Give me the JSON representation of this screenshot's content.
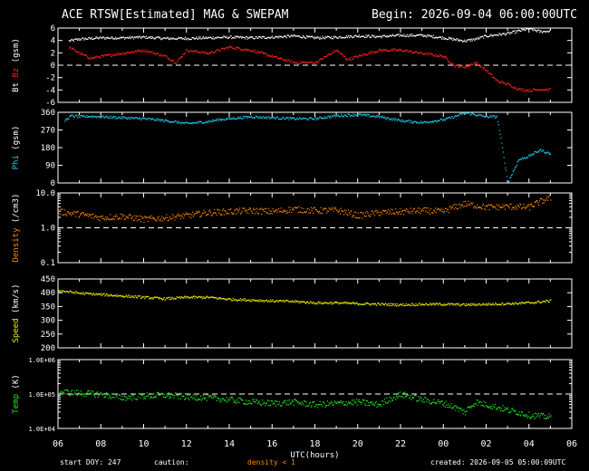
{
  "header": {
    "title": "ACE RTSW[Estimated] MAG & SWEPAM",
    "begin": "Begin: 2026-09-04 06:00:00UTC"
  },
  "footer": {
    "start_doy": "start DOY: 247",
    "caution": "caution:",
    "density_note": "density < 1",
    "created": "created: 2026-09-05 05:00:09UTC"
  },
  "colors": {
    "bt": "#ffffff",
    "bz": "#ff2020",
    "phi": "#22ccee",
    "density": "#ff8800",
    "speed": "#eeee00",
    "temp": "#22ee22",
    "frame": "#ffffff"
  },
  "chart_data": [
    {
      "type": "scatter",
      "ylabel": [
        "Bt",
        "Bz",
        "(gsm)"
      ],
      "ylim": [
        -6,
        6
      ],
      "yticks": [
        6,
        4,
        2,
        0,
        -2,
        -4,
        -6
      ],
      "reference_line": 0,
      "series": [
        {
          "name": "Bt",
          "x": [
            0.5,
            1,
            1.5,
            2,
            3,
            4,
            5,
            6,
            7,
            8,
            9,
            10,
            11,
            12,
            13,
            14,
            15,
            16,
            17,
            18,
            19,
            19.5,
            20,
            21,
            21.5,
            22,
            22.5,
            23
          ],
          "y": [
            4,
            4.3,
            4.4,
            4.5,
            4.5,
            4.6,
            4.4,
            4.4,
            4.5,
            4.6,
            4.5,
            4.6,
            4.8,
            4.5,
            4.6,
            4.8,
            4.7,
            4.9,
            4.9,
            4.5,
            4.0,
            4.3,
            4.8,
            5.2,
            5.6,
            6.0,
            5.5,
            5.6
          ]
        },
        {
          "name": "Bz",
          "x": [
            0.5,
            1,
            1.5,
            2,
            3,
            4,
            5,
            5.5,
            6,
            7,
            8,
            9,
            10,
            11,
            12,
            13,
            13.5,
            14,
            15,
            16,
            17,
            18,
            18.5,
            19,
            19.5,
            20,
            20.5,
            21,
            21.5,
            22,
            22.5,
            23
          ],
          "y": [
            3,
            2,
            1.2,
            1.5,
            2,
            2.5,
            1.5,
            0.5,
            2.5,
            2,
            3,
            2.5,
            1.5,
            0.5,
            0.5,
            2.5,
            1,
            1.5,
            2.5,
            2.5,
            2,
            1.5,
            0,
            -0.2,
            0.5,
            -0.8,
            -2.5,
            -3.0,
            -3.8,
            -4.0,
            -3.8,
            -3.9
          ]
        }
      ]
    },
    {
      "type": "scatter",
      "ylabel": [
        "Phi",
        "(gsm)"
      ],
      "ylim": [
        0,
        360
      ],
      "yticks": [
        360,
        270,
        180,
        90,
        0
      ],
      "series": [
        {
          "name": "Phi",
          "x": [
            0.3,
            0.6,
            1,
            1.5,
            2,
            3,
            4,
            5,
            6,
            7,
            7.5,
            8,
            9,
            10,
            11,
            12,
            13,
            14,
            15,
            16,
            17,
            18,
            18.5,
            19,
            19.5,
            20,
            20.5,
            21,
            21.5,
            22,
            22.5,
            23
          ],
          "y": [
            320,
            345,
            340,
            342,
            340,
            335,
            330,
            320,
            305,
            315,
            325,
            330,
            340,
            335,
            330,
            330,
            345,
            350,
            340,
            320,
            310,
            325,
            340,
            360,
            350,
            340,
            340,
            5,
            120,
            140,
            170,
            150
          ]
        }
      ]
    },
    {
      "type": "scatter",
      "ylabel": [
        "Density",
        "(/cm3)"
      ],
      "yscale": "log",
      "ylim": [
        0.1,
        10
      ],
      "yticks": [
        "10.0",
        "1.0",
        "0.1"
      ],
      "reference_line": 1.0,
      "series": [
        {
          "name": "Density",
          "x": [
            0,
            1,
            2,
            3,
            4,
            5,
            6,
            7,
            8,
            9,
            10,
            11,
            12,
            13,
            14,
            15,
            16,
            17,
            18,
            19,
            20,
            21,
            22,
            23
          ],
          "y": [
            3,
            2.5,
            2,
            2.2,
            1.8,
            2.0,
            2.3,
            2.8,
            3.0,
            3.2,
            3.0,
            3.5,
            3.2,
            3.3,
            2.3,
            2.8,
            3.0,
            3.2,
            3.0,
            5.0,
            4.0,
            4.2,
            4.0,
            7.5
          ]
        }
      ]
    },
    {
      "type": "scatter",
      "ylabel": [
        "Speed",
        "(km/s)"
      ],
      "ylim": [
        200,
        450
      ],
      "yticks": [
        450,
        400,
        350,
        300,
        250,
        200
      ],
      "series": [
        {
          "name": "Speed",
          "x": [
            0,
            1,
            2,
            3,
            4,
            5,
            6,
            7,
            8,
            9,
            10,
            11,
            12,
            13,
            14,
            15,
            16,
            17,
            18,
            19,
            20,
            21,
            22,
            23
          ],
          "y": [
            410,
            400,
            395,
            390,
            385,
            380,
            385,
            385,
            378,
            375,
            372,
            370,
            365,
            365,
            362,
            360,
            358,
            360,
            360,
            358,
            360,
            362,
            365,
            372
          ]
        }
      ]
    },
    {
      "type": "scatter",
      "ylabel": [
        "Temp",
        "(K)"
      ],
      "yscale": "log",
      "ylim": [
        10000,
        1000000
      ],
      "yticks": [
        "1.0E+06",
        "1.0E+05",
        "1.0E+04"
      ],
      "reference_line": 100000,
      "series": [
        {
          "name": "Temp",
          "x": [
            0,
            1,
            2,
            3,
            4,
            5,
            6,
            7,
            8,
            9,
            10,
            11,
            12,
            13,
            14,
            15,
            16,
            17,
            18,
            19,
            19.5,
            20,
            21,
            22,
            23
          ],
          "y": [
            120000,
            110000,
            100000,
            80000,
            90000,
            95000,
            85000,
            80000,
            70000,
            60000,
            55000,
            60000,
            50000,
            55000,
            60000,
            50000,
            100000,
            70000,
            55000,
            30000,
            60000,
            50000,
            35000,
            25000,
            22000
          ]
        }
      ]
    }
  ],
  "x_axis": {
    "label": "UTC(hours)",
    "xlim": [
      0,
      24
    ],
    "ticks": [
      "06",
      "08",
      "10",
      "12",
      "14",
      "16",
      "18",
      "20",
      "22",
      "00",
      "02",
      "04",
      "06"
    ]
  }
}
